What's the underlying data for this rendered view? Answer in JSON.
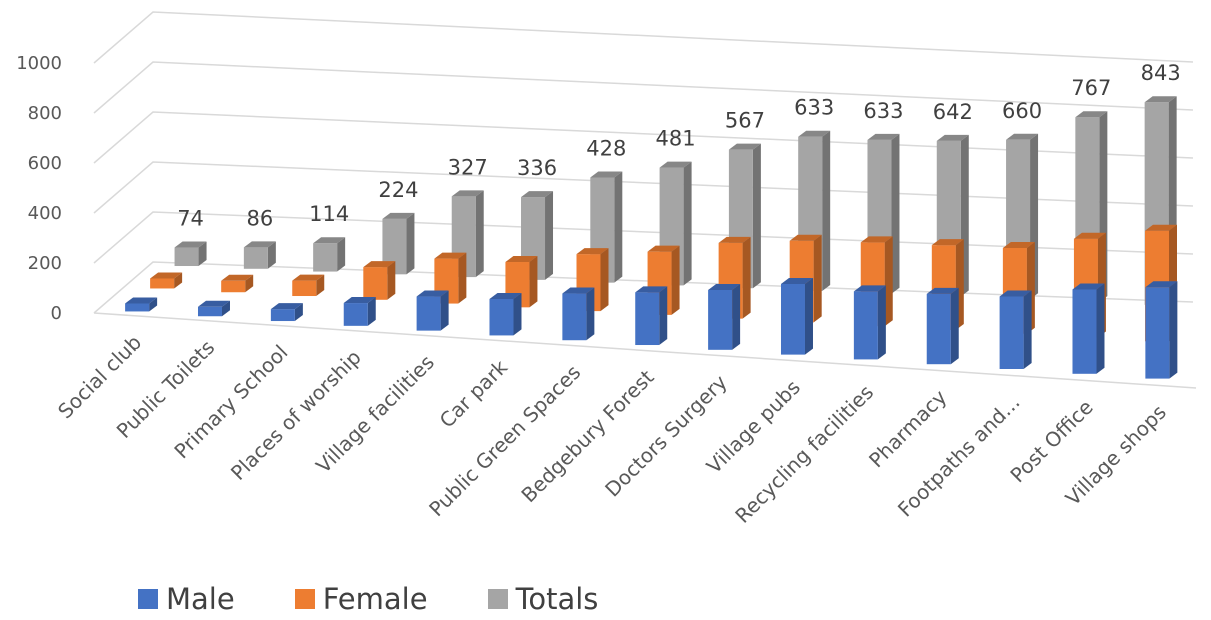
{
  "chart_data": {
    "type": "bar",
    "title": "",
    "xlabel": "",
    "ylabel": "",
    "ylim": [
      0,
      1000
    ],
    "y_ticks": [
      "0",
      "200",
      "400",
      "600",
      "800",
      "1000"
    ],
    "categories": [
      "Social club",
      "Public Toilets",
      "Primary School",
      "Places of worship",
      "Village facilities",
      "Car park",
      "Public Green Spaces",
      "Bedgebury Forest",
      "Doctors Surgery",
      "Village pubs",
      "Recycling facilities",
      "Pharmacy",
      "Footpaths and...",
      "Post Office",
      "Village shops"
    ],
    "series": [
      {
        "name": "Male",
        "color": "#4472C4",
        "values": [
          32,
          38,
          48,
          92,
          138,
          148,
          190,
          215,
          245,
          290,
          280,
          290,
          300,
          350,
          380
        ]
      },
      {
        "name": "Female",
        "color": "#ED7D31",
        "values": [
          40,
          46,
          62,
          132,
          182,
          184,
          232,
          258,
          310,
          335,
          345,
          350,
          355,
          410,
          460
        ]
      },
      {
        "name": "Totals",
        "color": "#A5A5A5",
        "values": [
          74,
          86,
          114,
          224,
          327,
          336,
          428,
          481,
          567,
          633,
          633,
          642,
          660,
          767,
          843
        ]
      }
    ],
    "data_labels": [
      "74",
      "86",
      "114",
      "224",
      "327",
      "336",
      "428",
      "481",
      "567",
      "633",
      "633",
      "642",
      "660",
      "767",
      "843"
    ],
    "grid": true,
    "legend": "bottom-left"
  }
}
